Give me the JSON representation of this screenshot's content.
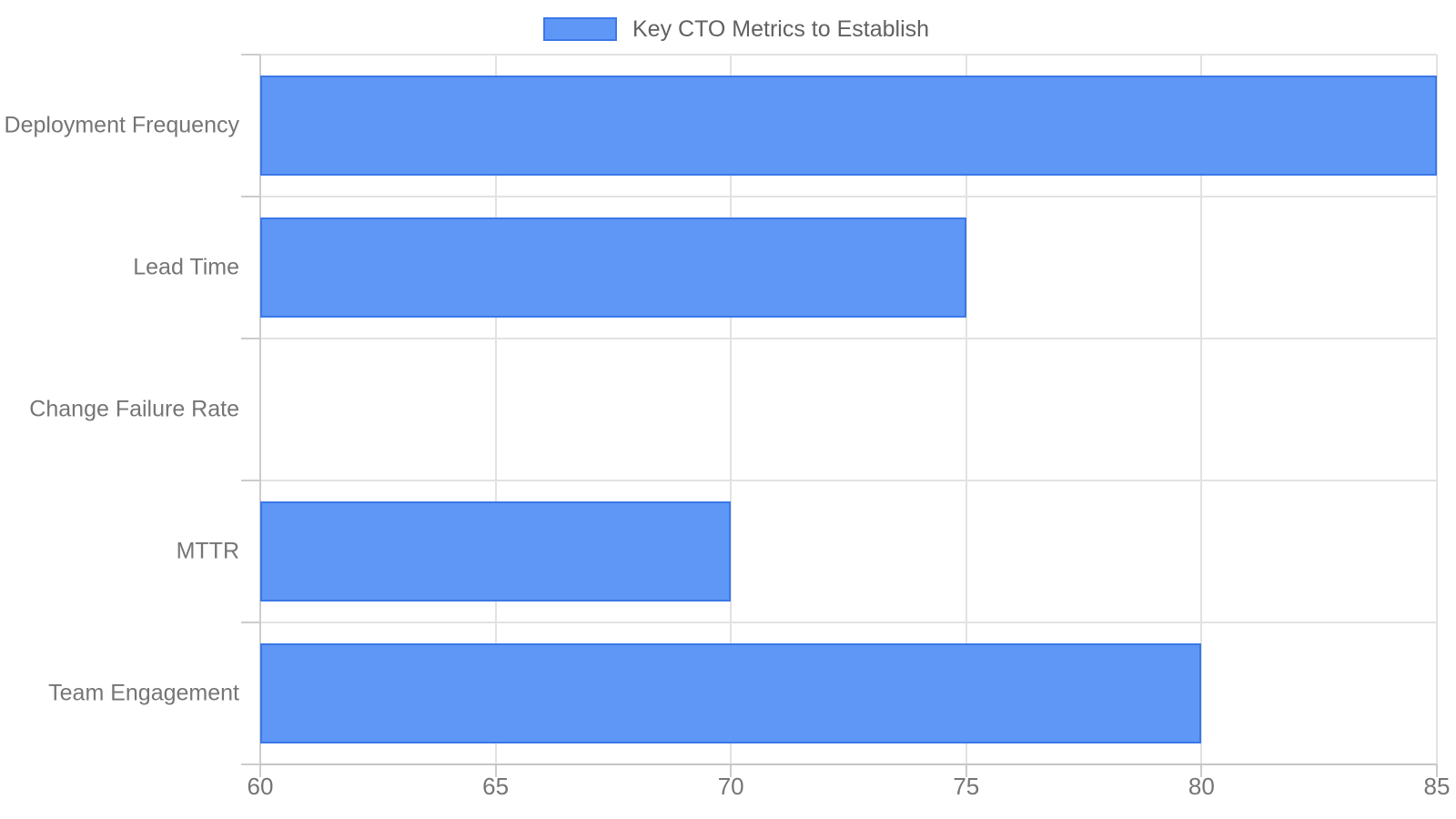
{
  "chart_data": {
    "type": "bar",
    "orientation": "horizontal",
    "title": "Key CTO Metrics to Establish",
    "categories": [
      "Deployment Frequency",
      "Lead Time",
      "Change Failure Rate",
      "MTTR",
      "Team Engagement"
    ],
    "values": [
      85,
      75,
      60,
      70,
      80
    ],
    "xlim": [
      60,
      85
    ],
    "xticks": [
      60,
      65,
      70,
      75,
      80,
      85
    ],
    "legend_position": "top",
    "grid": true,
    "note": "Change Failure Rate bar has zero visible length (value at axis minimum 60)",
    "colors": {
      "bar_fill": "#5e97f6",
      "bar_border": "#3b78e7",
      "gridline": "#e2e2e2",
      "axis_line": "#c6c6c6",
      "tick_mark": "#cccccc",
      "axis_text": "#757575",
      "legend_text": "#616161",
      "background": "#ffffff"
    }
  }
}
